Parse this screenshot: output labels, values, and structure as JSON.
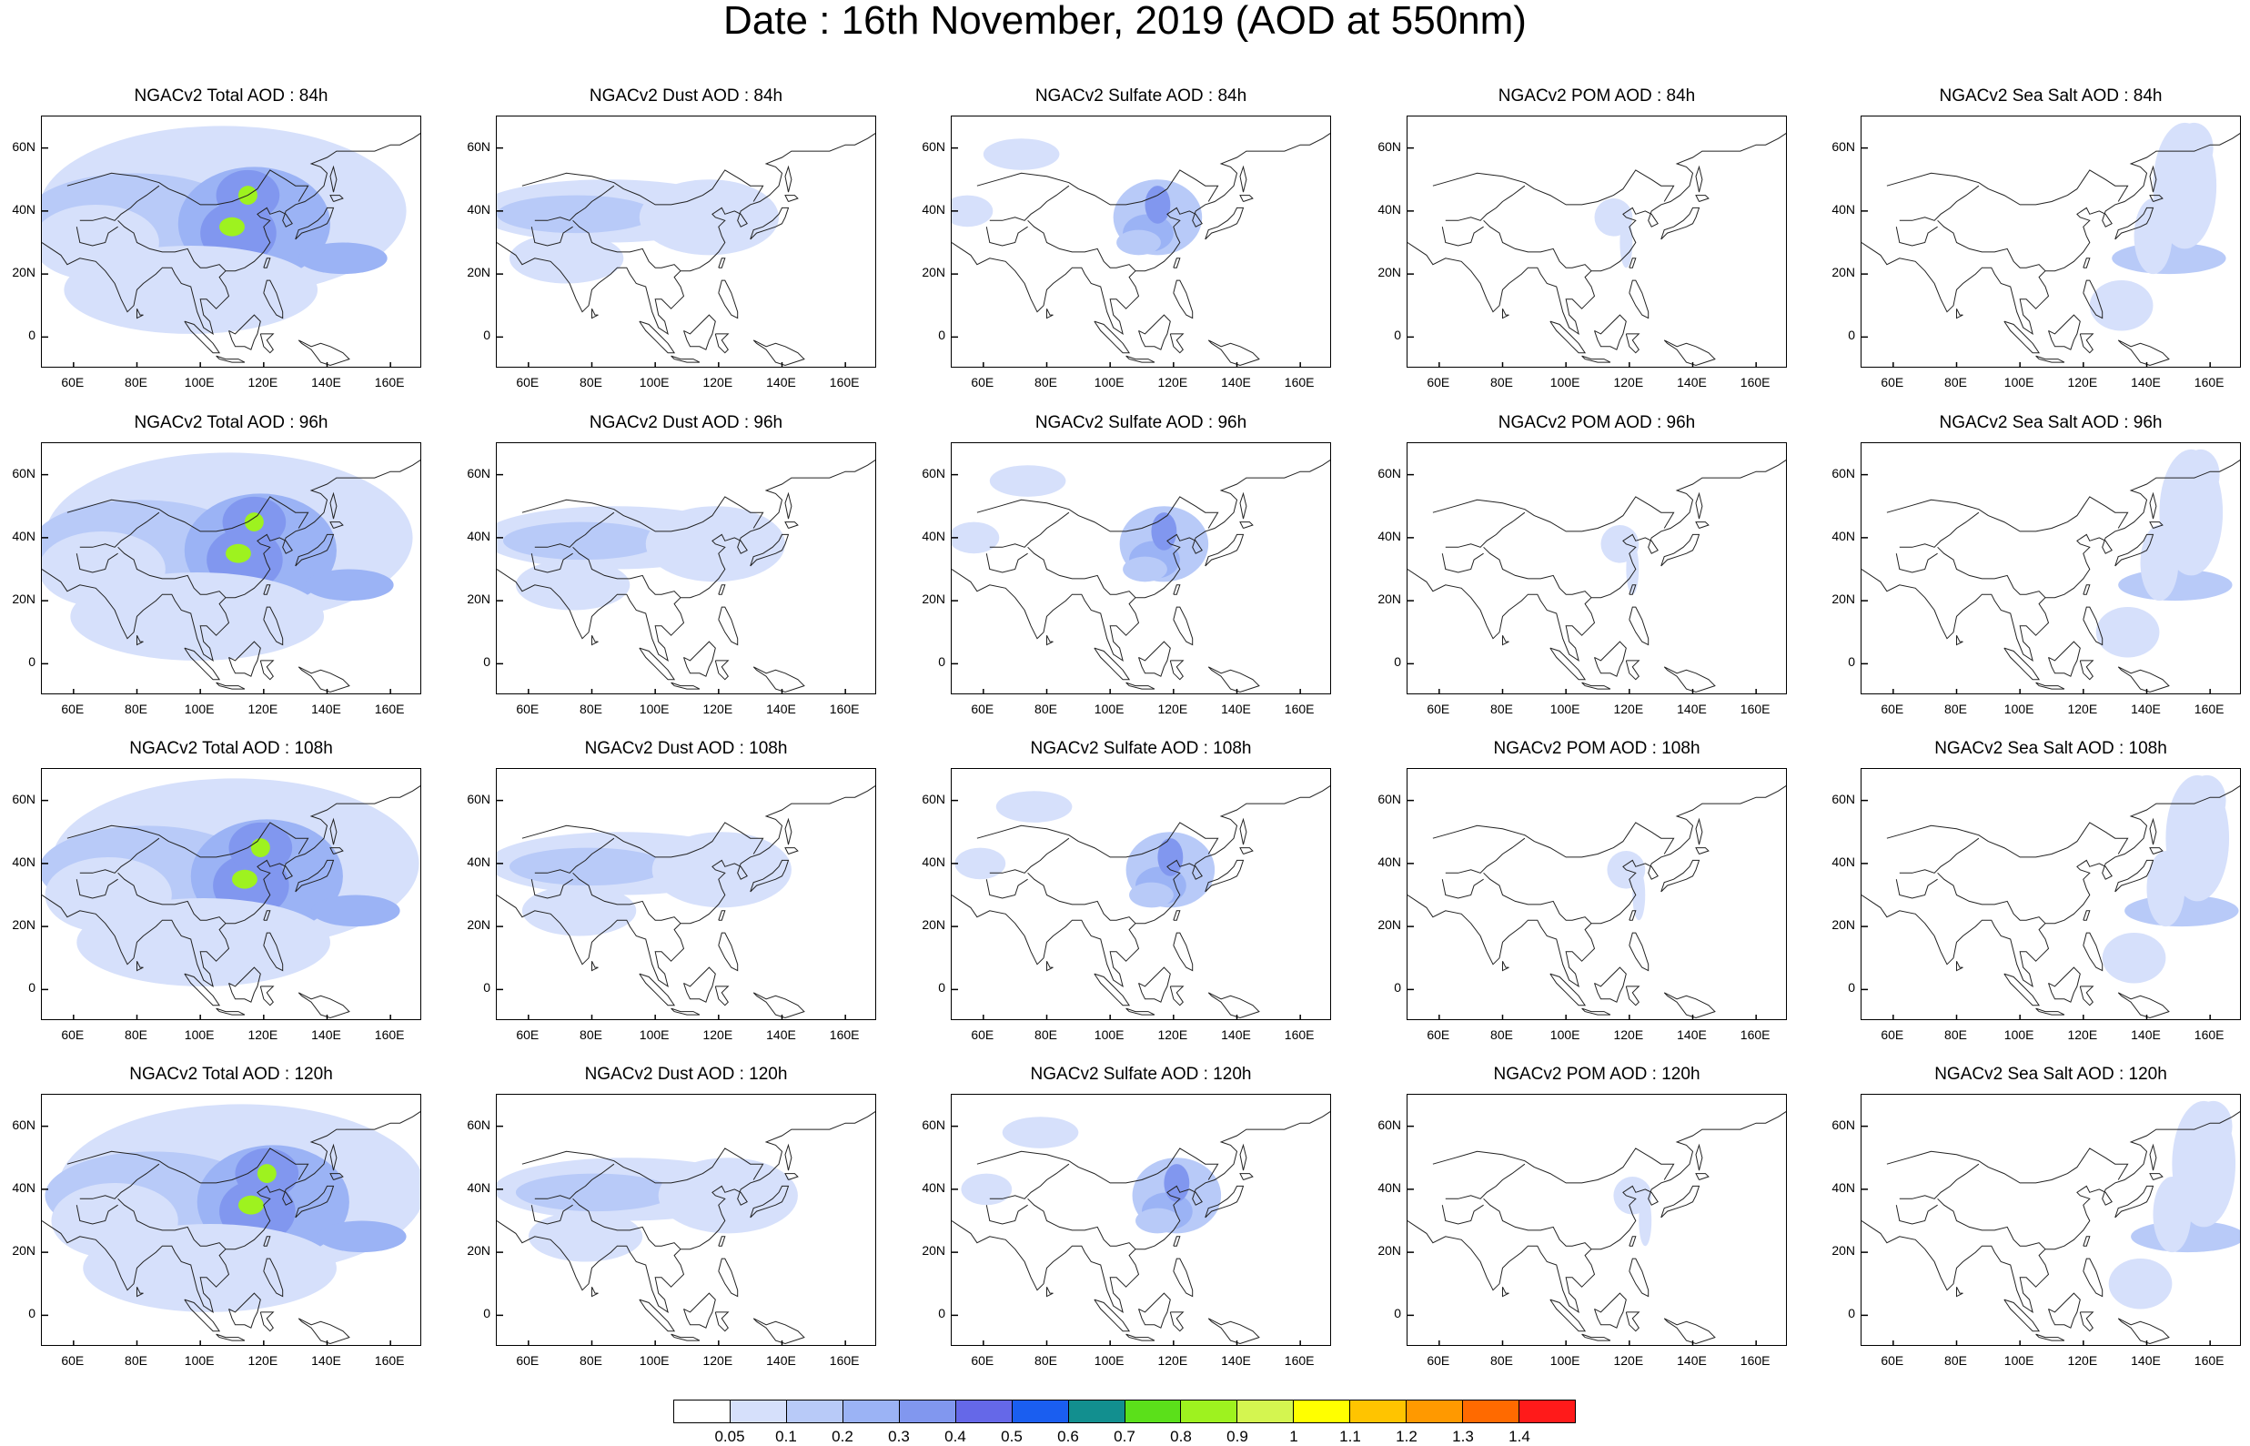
{
  "title": "Date : 16th November, 2019 (AOD at 550nm)",
  "columns": [
    "Total",
    "Dust",
    "Sulfate",
    "POM",
    "Sea Salt"
  ],
  "panels": [
    [
      "NGACv2 Total AOD : 84h",
      "NGACv2 Dust AOD : 84h",
      "NGACv2 Sulfate AOD : 84h",
      "NGACv2 POM AOD : 84h",
      "NGACv2 Sea Salt AOD : 84h"
    ],
    [
      "NGACv2 Total AOD : 96h",
      "NGACv2 Dust AOD : 96h",
      "NGACv2 Sulfate AOD : 96h",
      "NGACv2 POM AOD : 96h",
      "NGACv2 Sea Salt AOD : 96h"
    ],
    [
      "NGACv2 Total AOD : 108h",
      "NGACv2 Dust AOD : 108h",
      "NGACv2 Sulfate AOD : 108h",
      "NGACv2 POM AOD : 108h",
      "NGACv2 Sea Salt AOD : 108h"
    ],
    [
      "NGACv2 Total AOD : 120h",
      "NGACv2 Dust AOD : 120h",
      "NGACv2 Sulfate AOD : 120h",
      "NGACv2 POM AOD : 120h",
      "NGACv2 Sea Salt  AOD : 120h"
    ]
  ],
  "lat_labels": [
    "60N",
    "40N",
    "20N",
    "0"
  ],
  "lon_labels": [
    "60E",
    "80E",
    "100E",
    "120E",
    "140E",
    "160E"
  ],
  "map_extent": {
    "lon": [
      50,
      170
    ],
    "lat": [
      -10,
      70
    ]
  },
  "colorbar": {
    "labels": [
      "0.05",
      "0.1",
      "0.2",
      "0.3",
      "0.4",
      "0.5",
      "0.6",
      "0.7",
      "0.8",
      "0.9",
      "1",
      "1.1",
      "1.2",
      "1.3",
      "1.4"
    ],
    "colors": [
      "#ffffff",
      "#d6e0fb",
      "#b8caf8",
      "#9bb3f5",
      "#8197ef",
      "#6568e8",
      "#1a5ef0",
      "#128f8f",
      "#5be01a",
      "#9ef21f",
      "#d4f550",
      "#ffff00",
      "#ffc400",
      "#ff9900",
      "#ff6a00",
      "#ff1a1a"
    ]
  }
}
